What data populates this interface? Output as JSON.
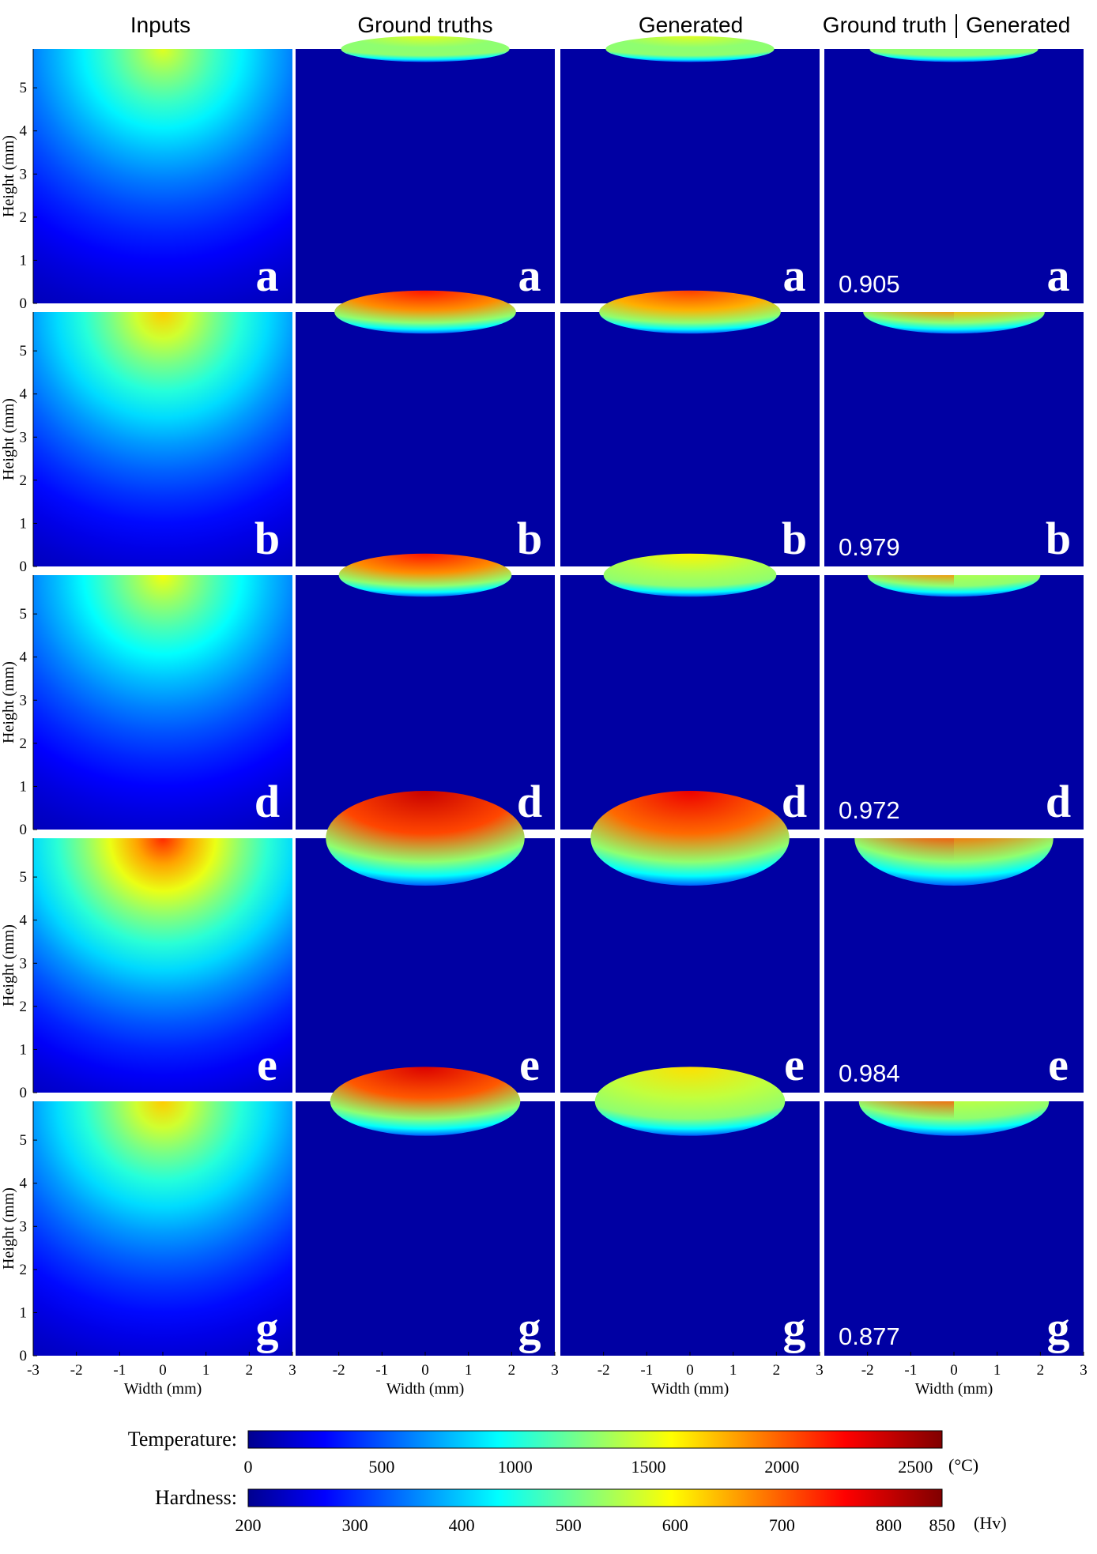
{
  "chart_data": {
    "type": "heatmap",
    "column_titles": [
      "Inputs",
      "Ground truths",
      "Generated",
      "Ground truth",
      "Generated"
    ],
    "row_labels": [
      "a",
      "b",
      "d",
      "e",
      "g"
    ],
    "scores": [
      "0.905",
      "0.979",
      "0.972",
      "0.984",
      "0.877"
    ],
    "xlabel": "Width (mm)",
    "ylabel": "Height (mm)",
    "x_ticks": [
      "-3",
      "-2",
      "-1",
      "0",
      "1",
      "2",
      "3"
    ],
    "x_ticks_inner": [
      "-2",
      "-1",
      "0",
      "1",
      "2",
      "3"
    ],
    "y_ticks": [
      "0",
      "1",
      "2",
      "3",
      "4",
      "5"
    ],
    "xlim": [
      -3,
      3
    ],
    "ylim": [
      0,
      5.9
    ],
    "input_peak_fraction": [
      0.58,
      0.66,
      0.6,
      0.82,
      0.66
    ],
    "zone_depth_mm": [
      0.3,
      0.5,
      0.5,
      1.1,
      0.8
    ],
    "zone_halfwidth_mm": [
      1.95,
      2.1,
      2.0,
      2.3,
      2.2
    ],
    "zone_peak_fraction": [
      0.58,
      0.84,
      0.84,
      0.92,
      0.9
    ],
    "generated_peak_fraction": [
      0.58,
      0.8,
      0.62,
      0.88,
      0.64
    ],
    "colorbars": [
      {
        "label": "Temperature:",
        "min": 0,
        "max": 2600,
        "ticks": [
          "0",
          "500",
          "1000",
          "1500",
          "2000",
          "2500"
        ],
        "unit": "(°C)"
      },
      {
        "label": "Hardness:",
        "min": 200,
        "max": 850,
        "ticks": [
          "200",
          "300",
          "400",
          "500",
          "600",
          "700",
          "800",
          "850"
        ],
        "unit": "(Hv)"
      }
    ],
    "colormap": "jet"
  }
}
